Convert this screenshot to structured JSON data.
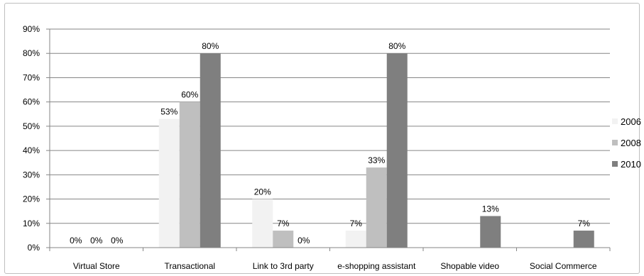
{
  "chart_data": {
    "type": "bar",
    "categories": [
      "Virtual Store",
      "Transactional",
      "Link to 3rd party",
      "e-shopping assistant",
      "Shopable video",
      "Social Commerce"
    ],
    "series": [
      {
        "name": "2006",
        "color": "#f2f2f2",
        "values": [
          0,
          53,
          20,
          7,
          null,
          null
        ],
        "labels": [
          "0%",
          "53%",
          "20%",
          "7%",
          "",
          ""
        ]
      },
      {
        "name": "2008",
        "color": "#bfbfbf",
        "values": [
          0,
          60,
          7,
          33,
          null,
          null
        ],
        "labels": [
          "0%",
          "60%",
          "7%",
          "33%",
          "",
          ""
        ]
      },
      {
        "name": "2010",
        "color": "#7f7f7f",
        "values": [
          0,
          80,
          0,
          80,
          13,
          7
        ],
        "labels": [
          "0%",
          "80%",
          "0%",
          "80%",
          "13%",
          "7%"
        ]
      }
    ],
    "y_ticks": [
      "0%",
      "10%",
      "20%",
      "30%",
      "40%",
      "50%",
      "60%",
      "70%",
      "80%",
      "90%"
    ],
    "ylim": [
      0,
      90
    ],
    "grid": true,
    "legend_position": "right",
    "title": "",
    "xlabel": "",
    "ylabel": ""
  }
}
